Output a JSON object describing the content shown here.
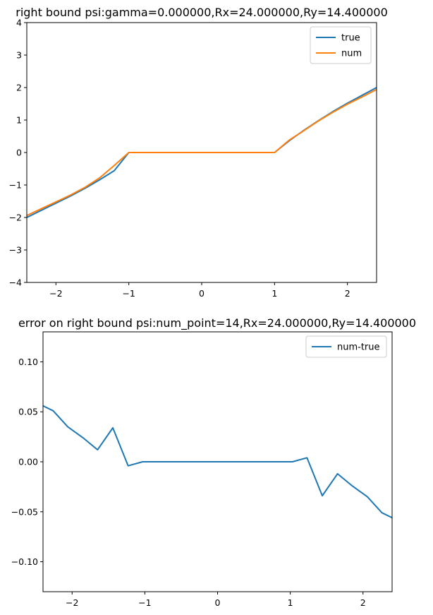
{
  "chart_data": [
    {
      "type": "line",
      "title": "right bound psi:gamma=0.000000,Rx=24.000000,Ry=14.400000",
      "xlim": [
        -2.4,
        2.4
      ],
      "ylim": [
        -4,
        4
      ],
      "xticks": [
        -2,
        -1,
        0,
        1,
        2
      ],
      "xtick_labels": [
        "−2",
        "−1",
        "0",
        "1",
        "2"
      ],
      "yticks": [
        -4,
        -3,
        -2,
        -1,
        0,
        1,
        2,
        3,
        4
      ],
      "ytick_labels": [
        "−4",
        "−3",
        "−2",
        "−1",
        "0",
        "1",
        "2",
        "3",
        "4"
      ],
      "legend_position": "top-right",
      "grid": false,
      "series": [
        {
          "name": "true",
          "color": "#1f77b4",
          "x": [
            -2.4,
            -2.2,
            -2.0,
            -1.8,
            -1.6,
            -1.4,
            -1.2,
            -1.0,
            -0.8,
            -0.6,
            -0.4,
            -0.2,
            0.0,
            0.2,
            0.4,
            0.6,
            0.8,
            1.0,
            1.2,
            1.4,
            1.6,
            1.8,
            2.0,
            2.2,
            2.4
          ],
          "y": [
            -2.0,
            -1.78,
            -1.56,
            -1.34,
            -1.1,
            -0.84,
            -0.56,
            0.0,
            0.0,
            0.0,
            0.0,
            0.0,
            0.0,
            0.0,
            0.0,
            0.0,
            0.0,
            0.0,
            0.36,
            0.68,
            0.98,
            1.26,
            1.52,
            1.76,
            2.0
          ]
        },
        {
          "name": "num",
          "color": "#ff7f0e",
          "x": [
            -2.4,
            -2.2,
            -2.0,
            -1.8,
            -1.6,
            -1.4,
            -1.2,
            -1.0,
            -0.8,
            -0.6,
            -0.4,
            -0.2,
            0.0,
            0.2,
            0.4,
            0.6,
            0.8,
            1.0,
            1.2,
            1.4,
            1.6,
            1.8,
            2.0,
            2.2,
            2.4
          ],
          "y": [
            -1.94,
            -1.73,
            -1.52,
            -1.31,
            -1.07,
            -0.78,
            -0.4,
            0.0,
            0.0,
            0.0,
            0.0,
            0.0,
            0.0,
            0.0,
            0.0,
            0.0,
            0.0,
            0.0,
            0.38,
            0.67,
            0.97,
            1.24,
            1.49,
            1.71,
            1.94
          ]
        }
      ]
    },
    {
      "type": "line",
      "title": "error on right bound psi:num_point=14,Rx=24.000000,Ry=14.400000",
      "xlim": [
        -2.4,
        2.4
      ],
      "ylim": [
        -0.13,
        0.13
      ],
      "xticks": [
        -2,
        -1,
        0,
        1,
        2
      ],
      "xtick_labels": [
        "−2",
        "−1",
        "0",
        "1",
        "2"
      ],
      "yticks": [
        -0.1,
        -0.05,
        0.0,
        0.05,
        0.1
      ],
      "ytick_labels": [
        "−0.10",
        "−0.05",
        "0.00",
        "0.05",
        "0.10"
      ],
      "legend_position": "top-right",
      "grid": false,
      "series": [
        {
          "name": "num-true",
          "color": "#1f77b4",
          "x": [
            -2.4,
            -2.26,
            -2.06,
            -1.85,
            -1.65,
            -1.44,
            -1.23,
            -1.03,
            -0.82,
            -0.62,
            -0.41,
            -0.21,
            0.0,
            0.21,
            0.41,
            0.62,
            0.82,
            1.03,
            1.23,
            1.44,
            1.65,
            1.85,
            2.06,
            2.26,
            2.4
          ],
          "y": [
            0.056,
            0.051,
            0.035,
            0.024,
            0.012,
            0.034,
            -0.004,
            0.0,
            0.0,
            0.0,
            0.0,
            0.0,
            0.0,
            0.0,
            0.0,
            0.0,
            0.0,
            0.0,
            0.004,
            -0.034,
            -0.012,
            -0.024,
            -0.035,
            -0.051,
            -0.056
          ]
        }
      ]
    }
  ]
}
